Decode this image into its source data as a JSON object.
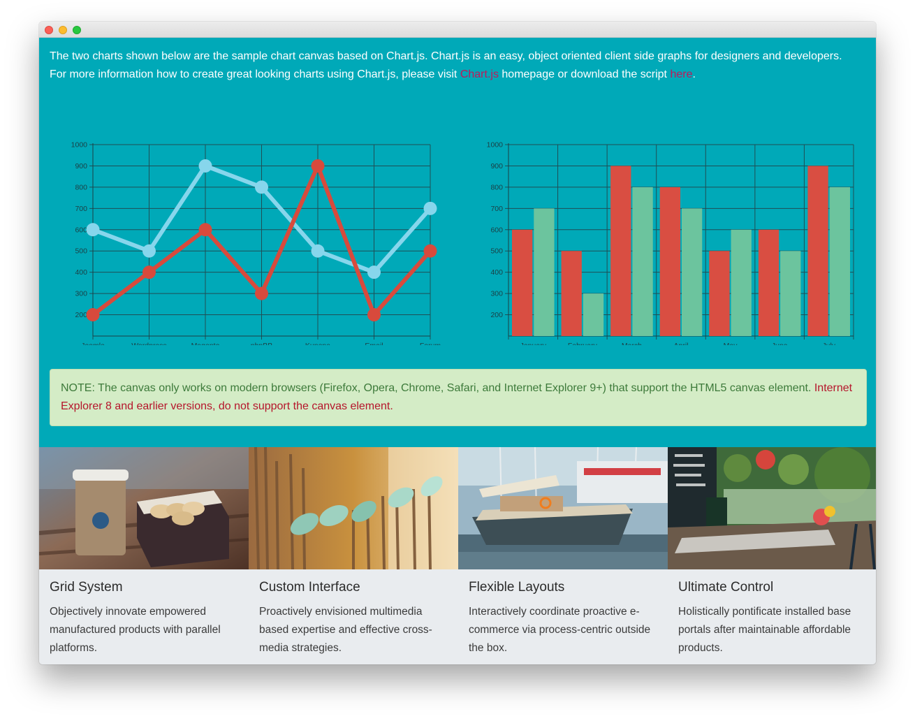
{
  "intro": {
    "text_before": "The two charts shown below are the sample chart canvas based on Chart.js. Chart.js is an easy, object oriented client side graphs for designers and developers. For more information how to create great looking charts using Chart.js, please visit ",
    "link1": "Chart.js",
    "text_middle": " homepage or download the script ",
    "link2": "here",
    "text_after": "."
  },
  "note": {
    "text": "NOTE: The canvas only works on modern browsers (Firefox, Opera, Chrome, Safari, and Internet Explorer 9+) that support the HTML5 canvas element. ",
    "warning": "Internet Explorer 8 and earlier versions, do not support the canvas element."
  },
  "chart_data": [
    {
      "type": "line",
      "categories": [
        "Joomla",
        "Wordpress",
        "Magento",
        "phpBB",
        "Kunena",
        "Email",
        "Forum"
      ],
      "series": [
        {
          "values": [
            600,
            500,
            900,
            800,
            500,
            400,
            700
          ],
          "color": "#87d6ec"
        },
        {
          "values": [
            200,
            400,
            600,
            300,
            900,
            200,
            500
          ],
          "color": "#d84a3c"
        }
      ],
      "yticks": [
        200,
        300,
        400,
        500,
        600,
        700,
        800,
        900,
        1000
      ],
      "ylim": [
        100,
        1000
      ],
      "grid": true
    },
    {
      "type": "bar",
      "categories": [
        "January",
        "February",
        "March",
        "April",
        "May",
        "June",
        "July"
      ],
      "series": [
        {
          "values": [
            600,
            500,
            900,
            800,
            500,
            600,
            900
          ],
          "color": "#d94e42"
        },
        {
          "values": [
            700,
            300,
            800,
            700,
            600,
            500,
            800
          ],
          "color": "#6cc49e"
        }
      ],
      "yticks": [
        200,
        300,
        400,
        500,
        600,
        700,
        800,
        900,
        1000
      ],
      "ylim": [
        100,
        1000
      ],
      "grid": true
    }
  ],
  "features": [
    {
      "title": "Grid System",
      "text": "Objectively innovate empowered manufactured products with parallel platforms."
    },
    {
      "title": "Custom Interface",
      "text": "Proactively envisioned multimedia based expertise and effective cross-media strategies."
    },
    {
      "title": "Flexible Layouts",
      "text": "Interactively coordinate proactive e-commerce via process-centric outside the box."
    },
    {
      "title": "Ultimate Control",
      "text": "Holistically pontificate installed base portals after maintainable affordable products."
    }
  ]
}
